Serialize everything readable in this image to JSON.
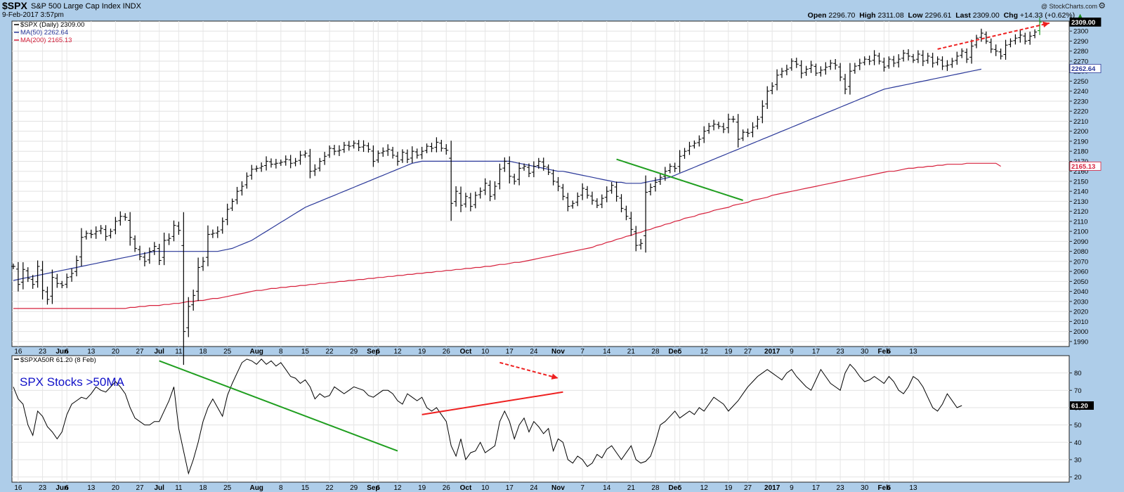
{
  "header": {
    "symbol": "$SPX",
    "description": "S&P 500 Large Cap Index INDX",
    "datetime": "9-Feb-2017 3:57pm",
    "watermark": "@ StockCharts.com",
    "open_label": "Open",
    "open": "2296.70",
    "high_label": "High",
    "high": "2311.08",
    "low_label": "Low",
    "low": "2296.61",
    "last_label": "Last",
    "last": "2309.00",
    "chg_label": "Chg",
    "chg": "+14.33 (+0.62%)",
    "chg_icon": "up-triangle-icon",
    "settings_icon": "gear-icon"
  },
  "lower_panel_label": "SPX Stocks >50MA",
  "colors": {
    "background": "#aecde9",
    "plot": "#ffffff",
    "ma50": "#2a3899",
    "ma200": "#d6203c",
    "trend_green": "#1f9e1f",
    "trend_red": "#ee2020",
    "label_blue": "#1010c8"
  },
  "chart_data": [
    {
      "type": "line",
      "subtype": "ohlc-bars",
      "title": "$SPX (Daily) 2309.00",
      "legend": [
        "$SPX (Daily) 2309.00",
        "MA(50) 2262.64",
        "MA(200) 2165.13"
      ],
      "legend_position": "top-left",
      "ylim": [
        1985,
        2310
      ],
      "yticks": [
        1990,
        2000,
        2010,
        2020,
        2030,
        2040,
        2050,
        2060,
        2070,
        2080,
        2090,
        2100,
        2110,
        2120,
        2130,
        2140,
        2150,
        2160,
        2170,
        2180,
        2190,
        2200,
        2210,
        2220,
        2230,
        2240,
        2250,
        2260,
        2270,
        2280,
        2290,
        2300
      ],
      "y_markers": [
        {
          "value": 2309.0,
          "label": "2309.00",
          "style": "black"
        },
        {
          "value": 2262.64,
          "label": "2262.64",
          "style": "ma50"
        },
        {
          "value": 2165.13,
          "label": "2165.13",
          "style": "ma200"
        }
      ],
      "xtick_labels": [
        "16",
        "23",
        "Jun",
        "6",
        "13",
        "20",
        "27",
        "Jul",
        "11",
        "18",
        "25",
        "Aug",
        "8",
        "15",
        "22",
        "29",
        "Sep",
        "6",
        "12",
        "19",
        "26",
        "Oct",
        "10",
        "17",
        "24",
        "Nov",
        "7",
        "14",
        "21",
        "28",
        "Dec",
        "5",
        "12",
        "19",
        "27",
        "2017",
        "9",
        "17",
        "23",
        "30",
        "Feb",
        "6",
        "13"
      ],
      "xtick_positions": [
        1,
        6,
        10,
        11,
        16,
        21,
        26,
        30,
        34,
        39,
        44,
        50,
        55,
        60,
        65,
        70,
        74,
        75,
        79,
        84,
        89,
        93,
        97,
        102,
        107,
        112,
        117,
        122,
        127,
        132,
        136,
        137,
        142,
        147,
        151,
        156,
        160,
        165,
        170,
        175,
        179,
        180,
        185
      ],
      "close": [
        2065,
        2047,
        2062,
        2053,
        2047,
        2065,
        2041,
        2032,
        2054,
        2048,
        2046,
        2054,
        2058,
        2071,
        2094,
        2098,
        2097,
        2100,
        2103,
        2095,
        2100,
        2110,
        2115,
        2114,
        2094,
        2083,
        2075,
        2070,
        2080,
        2085,
        2071,
        2091,
        2093,
        2106,
        2101,
        2000,
        2025,
        2036,
        2064,
        2070,
        2097,
        2098,
        2100,
        2110,
        2122,
        2130,
        2140,
        2145,
        2155,
        2162,
        2163,
        2165,
        2170,
        2167,
        2168,
        2169,
        2172,
        2168,
        2170,
        2176,
        2178,
        2160,
        2162,
        2170,
        2175,
        2183,
        2180,
        2181,
        2186,
        2185,
        2188,
        2184,
        2186,
        2182,
        2170,
        2178,
        2180,
        2182,
        2176,
        2170,
        2179,
        2172,
        2180,
        2176,
        2180,
        2185,
        2183,
        2189,
        2183,
        2181,
        2128,
        2140,
        2126,
        2135,
        2125,
        2136,
        2140,
        2148,
        2135,
        2145,
        2162,
        2170,
        2155,
        2150,
        2163,
        2165,
        2158,
        2165,
        2170,
        2165,
        2159,
        2150,
        2145,
        2135,
        2125,
        2128,
        2135,
        2143,
        2136,
        2131,
        2126,
        2133,
        2140,
        2146,
        2135,
        2123,
        2115,
        2102,
        2086,
        2088,
        2139,
        2144,
        2149,
        2154,
        2160,
        2165,
        2163,
        2175,
        2180,
        2185,
        2188,
        2192,
        2200,
        2205,
        2207,
        2205,
        2202,
        2212,
        2212,
        2192,
        2199,
        2198,
        2204,
        2212,
        2225,
        2240,
        2245,
        2256,
        2260,
        2262,
        2270,
        2267,
        2258,
        2262,
        2266,
        2258,
        2261,
        2264,
        2268,
        2266,
        2254,
        2242,
        2260,
        2265,
        2268,
        2272,
        2270,
        2276,
        2270,
        2264,
        2272,
        2268,
        2272,
        2278,
        2275,
        2271,
        2277,
        2270,
        2275,
        2268,
        2272,
        2265,
        2266,
        2270,
        2275,
        2280,
        2272,
        2285,
        2293,
        2298,
        2290,
        2282,
        2280,
        2275,
        2286,
        2290,
        2293,
        2296,
        2290,
        2295,
        2299,
        2309
      ],
      "ma50": [
        2051,
        2052,
        2053,
        2054,
        2055,
        2056,
        2057,
        2058,
        2059,
        2060,
        2061,
        2062,
        2063,
        2064,
        2065,
        2066,
        2067,
        2068,
        2069,
        2070,
        2071,
        2072,
        2073,
        2074,
        2075,
        2076,
        2077,
        2078,
        2079,
        2080,
        2080,
        2080,
        2080,
        2080,
        2080,
        2080,
        2080,
        2080,
        2080,
        2080,
        2080,
        2080,
        2080,
        2081,
        2082,
        2083,
        2085,
        2087,
        2089,
        2091,
        2094,
        2097,
        2100,
        2103,
        2106,
        2109,
        2112,
        2115,
        2118,
        2121,
        2124,
        2126,
        2128,
        2130,
        2132,
        2134,
        2136,
        2138,
        2140,
        2142,
        2144,
        2146,
        2148,
        2150,
        2152,
        2154,
        2156,
        2158,
        2160,
        2162,
        2164,
        2166,
        2168,
        2169,
        2170,
        2170,
        2170,
        2170,
        2170,
        2170,
        2170,
        2170,
        2170,
        2170,
        2170,
        2170,
        2170,
        2170,
        2170,
        2170,
        2170,
        2170,
        2170,
        2169,
        2168,
        2167,
        2166,
        2165,
        2164,
        2163,
        2162,
        2161,
        2160,
        2160,
        2159,
        2158,
        2157,
        2156,
        2155,
        2154,
        2153,
        2152,
        2151,
        2150,
        2149,
        2149,
        2148,
        2148,
        2148,
        2148,
        2149,
        2150,
        2151,
        2152,
        2153,
        2154,
        2156,
        2158,
        2160,
        2162,
        2164,
        2166,
        2168,
        2170,
        2172,
        2174,
        2176,
        2178,
        2180,
        2182,
        2184,
        2186,
        2188,
        2190,
        2192,
        2194,
        2196,
        2198,
        2200,
        2202,
        2204,
        2206,
        2208,
        2210,
        2212,
        2214,
        2216,
        2218,
        2220,
        2222,
        2224,
        2226,
        2228,
        2230,
        2232,
        2234,
        2236,
        2238,
        2240,
        2242,
        2243,
        2244,
        2245,
        2246,
        2247,
        2248,
        2249,
        2250,
        2251,
        2252,
        2253,
        2254,
        2255,
        2256,
        2257,
        2258,
        2259,
        2260,
        2261,
        2262
      ],
      "ma200": [
        2023,
        2023,
        2023,
        2023,
        2023,
        2023,
        2023,
        2023,
        2023,
        2023,
        2023,
        2023,
        2023,
        2023,
        2023,
        2023,
        2023,
        2023,
        2023,
        2023,
        2023,
        2023,
        2023,
        2023,
        2024,
        2024,
        2025,
        2025,
        2026,
        2026,
        2026,
        2027,
        2027,
        2028,
        2028,
        2029,
        2030,
        2030,
        2031,
        2031,
        2032,
        2033,
        2033,
        2034,
        2035,
        2036,
        2037,
        2038,
        2039,
        2040,
        2041,
        2041,
        2042,
        2043,
        2043,
        2044,
        2044,
        2045,
        2045,
        2046,
        2046,
        2047,
        2047,
        2048,
        2048,
        2049,
        2049,
        2050,
        2050,
        2051,
        2051,
        2052,
        2052,
        2053,
        2053,
        2054,
        2054,
        2055,
        2055,
        2056,
        2056,
        2057,
        2057,
        2058,
        2058,
        2059,
        2059,
        2060,
        2060,
        2061,
        2061,
        2062,
        2062,
        2063,
        2063,
        2064,
        2064,
        2065,
        2065,
        2066,
        2067,
        2067,
        2068,
        2069,
        2069,
        2070,
        2071,
        2072,
        2073,
        2074,
        2075,
        2076,
        2077,
        2078,
        2079,
        2080,
        2081,
        2082,
        2083,
        2084,
        2086,
        2087,
        2089,
        2090,
        2092,
        2093,
        2095,
        2096,
        2098,
        2099,
        2101,
        2102,
        2104,
        2105,
        2107,
        2108,
        2110,
        2111,
        2113,
        2114,
        2115,
        2117,
        2118,
        2119,
        2121,
        2122,
        2123,
        2124,
        2126,
        2127,
        2128,
        2129,
        2131,
        2132,
        2133,
        2134,
        2136,
        2137,
        2138,
        2139,
        2140,
        2141,
        2142,
        2143,
        2144,
        2145,
        2146,
        2147,
        2148,
        2149,
        2150,
        2151,
        2152,
        2153,
        2154,
        2155,
        2156,
        2157,
        2158,
        2159,
        2160,
        2160,
        2161,
        2162,
        2163,
        2163,
        2164,
        2164,
        2165,
        2165,
        2166,
        2166,
        2167,
        2167,
        2167,
        2167,
        2168,
        2168,
        2168,
        2168,
        2168,
        2168,
        2168,
        2165
      ],
      "annotations": [
        {
          "kind": "trendline",
          "color": "green",
          "from": [
            124,
            2172
          ],
          "to": [
            150,
            2131
          ]
        },
        {
          "kind": "dashed-arrow",
          "color": "red",
          "from": [
            190,
            2282
          ],
          "to": [
            213,
            2308
          ]
        }
      ]
    },
    {
      "type": "line",
      "title": "$SPXA50R 61.20 (8 Feb)",
      "legend": [
        "$SPXA50R 61.20 (8 Feb)"
      ],
      "legend_position": "top-left",
      "ylim": [
        17,
        90
      ],
      "yticks": [
        20,
        30,
        40,
        50,
        60,
        70,
        80
      ],
      "y_markers": [
        {
          "value": 61.2,
          "label": "61.20"
        }
      ],
      "values": [
        72,
        65,
        62,
        50,
        44,
        58,
        55,
        49,
        46,
        42,
        46,
        56,
        62,
        64,
        66,
        65,
        68,
        72,
        70,
        69,
        72,
        75,
        72,
        68,
        60,
        54,
        52,
        50,
        50,
        52,
        52,
        58,
        64,
        72,
        48,
        35,
        22,
        30,
        40,
        52,
        60,
        65,
        60,
        55,
        67,
        74,
        80,
        86,
        88,
        87,
        85,
        88,
        85,
        87,
        84,
        86,
        82,
        78,
        77,
        74,
        76,
        72,
        65,
        68,
        66,
        67,
        72,
        70,
        68,
        70,
        72,
        71,
        70,
        67,
        66,
        68,
        70,
        70,
        68,
        64,
        62,
        68,
        66,
        64,
        66,
        60,
        58,
        60,
        56,
        52,
        38,
        32,
        42,
        30,
        34,
        35,
        40,
        34,
        36,
        38,
        52,
        58,
        52,
        42,
        50,
        54,
        46,
        52,
        49,
        45,
        48,
        35,
        42,
        40,
        30,
        28,
        32,
        30,
        26,
        28,
        33,
        31,
        36,
        38,
        34,
        30,
        34,
        38,
        30,
        28,
        29,
        32,
        40,
        50,
        52,
        55,
        58,
        54,
        56,
        58,
        56,
        60,
        58,
        62,
        66,
        64,
        62,
        58,
        61,
        64,
        68,
        72,
        75,
        78,
        80,
        82,
        80,
        78,
        76,
        80,
        82,
        78,
        75,
        72,
        70,
        76,
        82,
        78,
        74,
        72,
        70,
        80,
        85,
        82,
        78,
        75,
        76,
        78,
        76,
        74,
        78,
        75,
        70,
        68,
        72,
        78,
        76,
        72,
        66,
        60,
        58,
        62,
        68,
        64,
        60,
        61.2
      ],
      "annotations": [
        {
          "kind": "trendline",
          "color": "green",
          "from": [
            30,
            87
          ],
          "to": [
            79,
            35
          ]
        },
        {
          "kind": "trendline",
          "color": "red",
          "from": [
            84,
            56
          ],
          "to": [
            113,
            69
          ]
        },
        {
          "kind": "dashed-arrow",
          "color": "red",
          "from": [
            100,
            86
          ],
          "to": [
            112,
            77
          ]
        }
      ]
    }
  ]
}
